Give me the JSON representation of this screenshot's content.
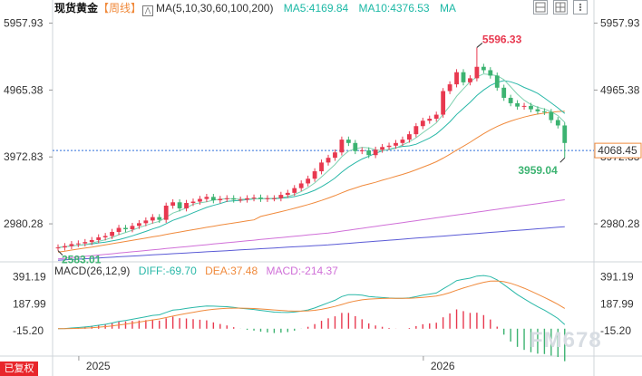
{
  "header": {
    "symbol": "现货黄金",
    "period": "【周线】",
    "ma_label": "MA(5,10,30,60,100,200)",
    "ma5": "MA5:4169.84",
    "ma10": "MA10:4376.53",
    "ma_tail": "MA"
  },
  "macd_header": {
    "label": "MACD(26,12,9)",
    "diff": "DIFF:-69.70",
    "dea": "DEA:37.48",
    "macd": "MACD:-214.37"
  },
  "bottom_badge": "已复权",
  "watermark": "FM678",
  "colors": {
    "up": "#e8384f",
    "down": "#3cb371",
    "ma5": "#7fd1b0",
    "ma10": "#2ab8a8",
    "ma30": "#f08a3c",
    "ma60": "#d070d8",
    "ma100": "#5b5bd6",
    "price_line": "#2f6fdb",
    "price_tag": "#f08a3c"
  },
  "chart_data": {
    "type": "candlestick",
    "period": "weekly",
    "y_ticks": [
      "5957.93",
      "4965.38",
      "3972.83",
      "2980.28"
    ],
    "y_ticks_values": [
      5957.93,
      4965.38,
      3972.83,
      2980.28
    ],
    "ylim": [
      2430,
      6140
    ],
    "x_labels": [
      "2025",
      "2026"
    ],
    "x_label_index": [
      2,
      53
    ],
    "current_price": 4068.45,
    "current_price_label": "4068.45",
    "high_label": "5596.33",
    "high_value": 5596.33,
    "high_index": 62,
    "low_label": "2583.01",
    "low_value": 2583.01,
    "low_index": 0,
    "recent_low_label": "3959.04",
    "recent_low_value": 3959.04,
    "recent_low_index": 75,
    "closes": [
      2630,
      2650,
      2680,
      2690,
      2710,
      2740,
      2780,
      2800,
      2860,
      2920,
      2900,
      2950,
      2990,
      3030,
      3080,
      3040,
      3250,
      3300,
      3210,
      3290,
      3310,
      3350,
      3380,
      3330,
      3350,
      3360,
      3340,
      3340,
      3360,
      3370,
      3350,
      3360,
      3360,
      3410,
      3440,
      3510,
      3580,
      3650,
      3760,
      3890,
      3960,
      4040,
      4230,
      4180,
      4060,
      4070,
      4000,
      4080,
      4120,
      4140,
      4180,
      4230,
      4310,
      4430,
      4510,
      4540,
      4600,
      4950,
      5050,
      5230,
      5080,
      5140,
      5310,
      5260,
      5180,
      5000,
      4850,
      4770,
      4720,
      4730,
      4680,
      4650,
      4640,
      4520,
      4440,
      4180
    ],
    "macd_yticks": [
      "391.19",
      "187.99",
      "-15.20"
    ],
    "macd_yticks_values": [
      391.19,
      187.99,
      -15.2
    ],
    "macd_ylim": [
      -200,
      430
    ]
  }
}
